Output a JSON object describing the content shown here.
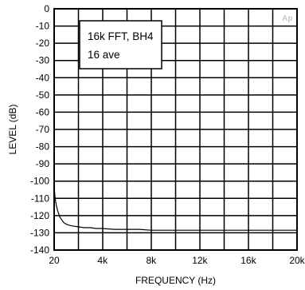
{
  "chart_data": {
    "type": "line",
    "xlabel": "FREQUENCY (Hz)",
    "ylabel": "LEVEL (dB)",
    "xlim": [
      20,
      20000
    ],
    "ylim": [
      -140,
      0
    ],
    "x_tick_values": [
      20,
      4000,
      8000,
      12000,
      16000,
      20000
    ],
    "x_tick_labels": [
      "20",
      "4k",
      "8k",
      "12k",
      "16k",
      "20k"
    ],
    "y_tick_values": [
      0,
      -10,
      -20,
      -30,
      -40,
      -50,
      -60,
      -70,
      -80,
      -90,
      -100,
      -110,
      -120,
      -130,
      -140
    ],
    "y_tick_labels": [
      "0",
      "-10",
      "-20",
      "-30",
      "-40",
      "-50",
      "-60",
      "-70",
      "-80",
      "-90",
      "-100",
      "-110",
      "-120",
      "-130",
      "-140"
    ],
    "grid": true,
    "annotation": [
      "16k FFT, BH4",
      "16 ave"
    ],
    "logo_text": "Ap",
    "series": [
      {
        "color": "#000000",
        "x": [
          20,
          100,
          200,
          300,
          400,
          500,
          600,
          700,
          800,
          1000,
          1200,
          1500,
          2000,
          2500,
          3000,
          3500,
          4000,
          5000,
          6000,
          7000,
          8000,
          9000,
          10000,
          11000,
          12000,
          13000,
          14000,
          15000,
          16000,
          17000,
          18000,
          19000,
          20000
        ],
        "y": [
          -103,
          -110,
          -114,
          -117,
          -119,
          -121,
          -122,
          -123,
          -124,
          -125,
          -125.5,
          -126,
          -126.5,
          -127,
          -127,
          -127.5,
          -127.5,
          -128,
          -128,
          -128,
          -128.5,
          -128.5,
          -128.5,
          -128.5,
          -128.5,
          -128.5,
          -128.5,
          -128.5,
          -128.5,
          -128.5,
          -128.5,
          -128.5,
          -128.5
        ]
      }
    ]
  }
}
